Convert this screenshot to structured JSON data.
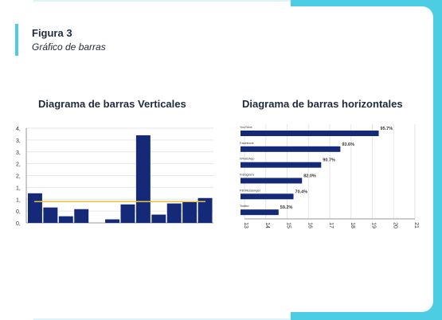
{
  "figure": {
    "label": "Figura 3",
    "title": "Gráfico de barras"
  },
  "colors": {
    "accent": "#4dcde4",
    "bar": "#142a78",
    "line": "#e8c23a",
    "text": "#1f2a3d"
  },
  "chart_data": [
    {
      "type": "bar",
      "title": "Diagrama de barras Verticales",
      "ytick_labels": [
        "0,",
        "0,",
        "1,",
        "1,",
        "2,",
        "2,",
        "3,",
        "3,",
        "4,"
      ],
      "ylim": [
        0,
        4
      ],
      "values": [
        1.25,
        0.65,
        0.28,
        0.58,
        0.0,
        0.15,
        0.78,
        3.7,
        0.35,
        0.82,
        0.92,
        1.05
      ],
      "reference_line": 0.9,
      "grid": true
    },
    {
      "type": "bar",
      "orientation": "horizontal",
      "title": "Diagrama de barras horizontales",
      "categories": [
        "YouTube",
        "Facebook",
        "WhatsApp",
        "Instagram",
        "FB Messenger",
        "Twitter"
      ],
      "values": [
        95.7,
        93.6,
        90.7,
        82.0,
        70.4,
        59.2
      ],
      "data_labels": [
        "95.7%",
        "93.6%",
        "90.7%",
        "82.0%",
        "70.4%",
        "59.2%"
      ],
      "bar_ends": [
        19.3,
        17.5,
        16.6,
        15.7,
        15.3,
        14.6
      ],
      "xtick_labels": [
        "13",
        "14",
        "15",
        "16",
        "17",
        "18",
        "19",
        "20",
        "21"
      ],
      "xlim": [
        13,
        21
      ],
      "grid": true
    }
  ]
}
